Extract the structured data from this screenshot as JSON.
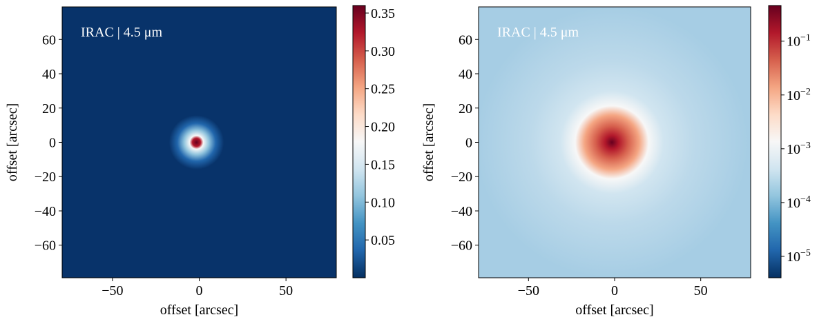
{
  "chart_data": [
    {
      "type": "image",
      "annotation": "IRAC | 4.5 μm",
      "xlabel": "offset [arcsec]",
      "ylabel": "offset [arcsec]",
      "xlim": [
        -79,
        79
      ],
      "ylim": [
        -79,
        79
      ],
      "xticks": [
        {
          "value": -50,
          "label": "−50"
        },
        0,
        50
      ],
      "yticks": [
        {
          "value": -60,
          "label": "−60"
        },
        {
          "value": -40,
          "label": "−40"
        },
        {
          "value": -20,
          "label": "−20"
        },
        0,
        20,
        40,
        60
      ],
      "colorbar": {
        "lim": [
          0,
          0.36
        ],
        "log": false,
        "ticks": [
          0.05,
          {
            "value": 0.1,
            "label": "0.10"
          },
          0.15,
          {
            "value": 0.2,
            "label": "0.20"
          },
          0.25,
          {
            "value": 0.3,
            "label": "0.30"
          },
          0.35
        ]
      },
      "colormap": [
        "#053061",
        "#2166ac",
        "#4393c3",
        "#92c5de",
        "#d1e5f0",
        "#f7f7f7",
        "#fddbc7",
        "#f4a582",
        "#d6604d",
        "#b2182b",
        "#67001f"
      ]
    },
    {
      "type": "image",
      "annotation": "IRAC | 4.5 μm",
      "xlabel": "offset [arcsec]",
      "ylabel": "offset [arcsec]",
      "xlim": [
        -79,
        79
      ],
      "ylim": [
        -79,
        79
      ],
      "xticks": [
        {
          "value": -50,
          "label": "−50"
        },
        0,
        50
      ],
      "yticks": [
        {
          "value": -60,
          "label": "−60"
        },
        {
          "value": -40,
          "label": "−40"
        },
        {
          "value": -20,
          "label": "−20"
        },
        0,
        20,
        40,
        60
      ],
      "colorbar": {
        "lim": [
          4e-06,
          0.46
        ],
        "log": true,
        "ticks": [
          {
            "value": 1e-05,
            "label": "10−5"
          },
          {
            "value": 0.0001,
            "label": "10−4"
          },
          {
            "value": 0.001,
            "label": "10−3"
          },
          {
            "value": 0.01,
            "label": "10−2"
          },
          {
            "value": 0.1,
            "label": "10−1"
          }
        ]
      },
      "colormap": [
        "#053061",
        "#2166ac",
        "#4393c3",
        "#92c5de",
        "#d1e5f0",
        "#f7f7f7",
        "#fddbc7",
        "#f4a582",
        "#d6604d",
        "#b2182b",
        "#67001f"
      ]
    }
  ]
}
